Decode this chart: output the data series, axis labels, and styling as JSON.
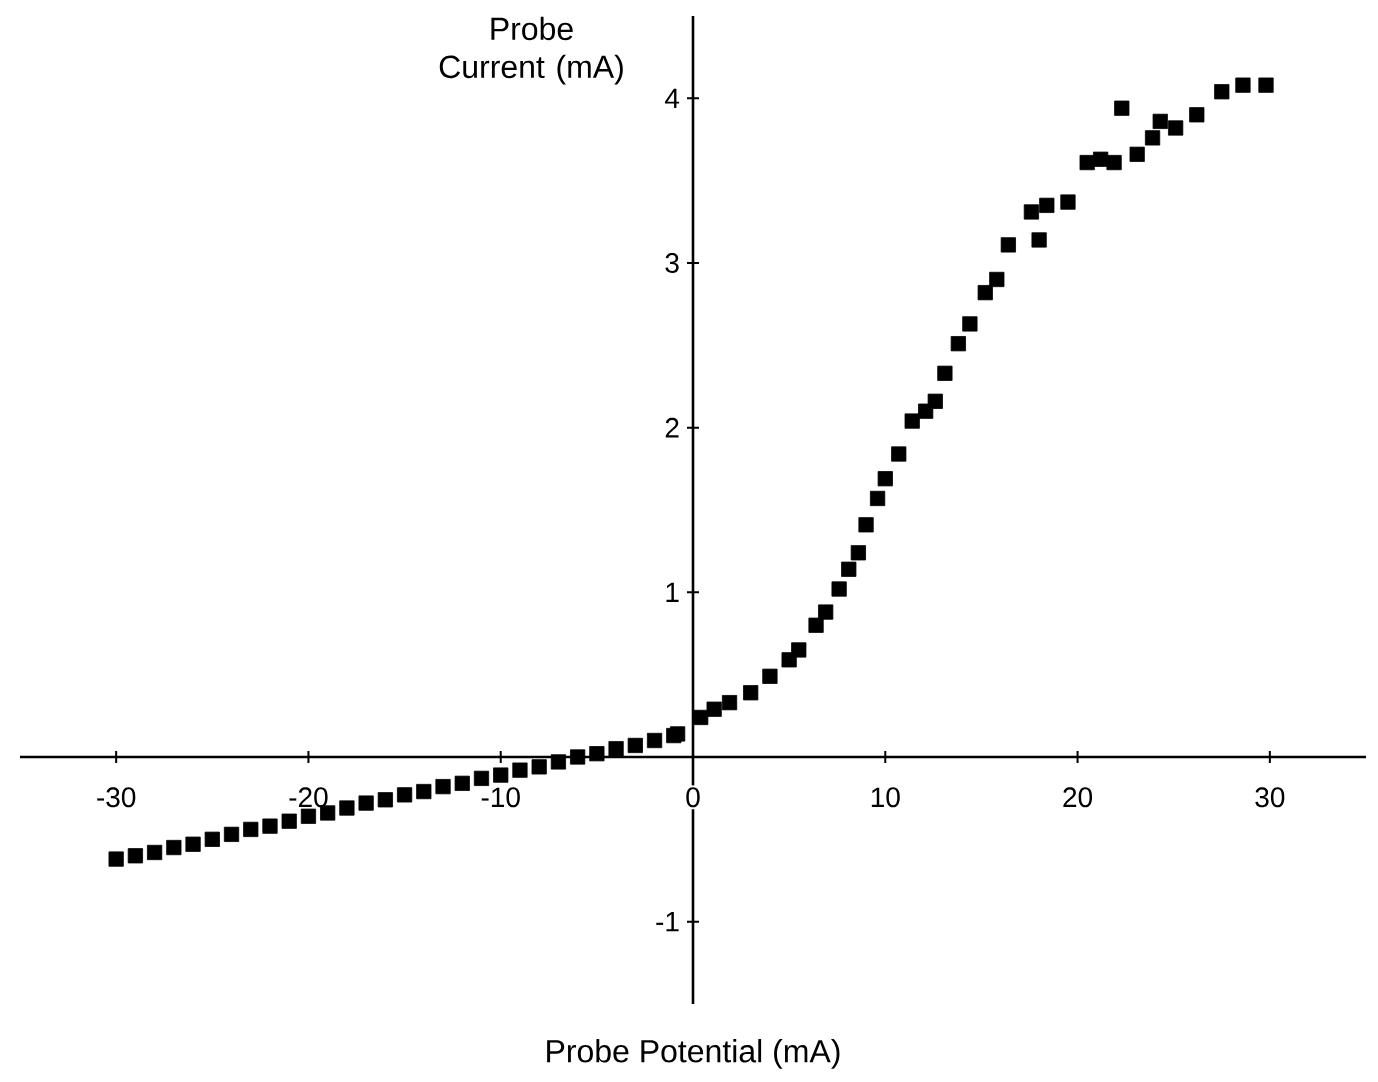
{
  "chart_data": {
    "type": "scatter",
    "xlabel": "Probe Potential (mA)",
    "ylabel": "Probe Current (mA)",
    "xlim": [
      -35,
      35
    ],
    "ylim": [
      -1.5,
      4.5
    ],
    "xticks": [
      -30,
      -20,
      -10,
      0,
      10,
      20,
      30
    ],
    "yticks": [
      -1,
      1,
      2,
      3,
      4
    ],
    "marker": "square",
    "series": [
      {
        "color": "#000000",
        "x": [
          -30,
          -29,
          -28,
          -27,
          -26,
          -25,
          -24,
          -23,
          -22,
          -21,
          -20,
          -19,
          -18,
          -17,
          -16,
          -15,
          -14,
          -13,
          -12,
          -11,
          -10,
          -9,
          -8,
          -7,
          -6,
          -5,
          -4,
          -3,
          -2,
          -1,
          -0.8,
          0.4,
          1.1,
          1.9,
          3.0,
          4.0,
          5.0,
          5.5,
          6.4,
          6.9,
          7.6,
          8.1,
          8.6,
          9.0,
          9.6,
          10.0,
          10.7,
          11.4,
          12.1,
          12.6,
          13.1,
          13.8,
          14.4,
          15.2,
          15.8,
          16.4,
          17.6,
          18.0,
          18.4,
          19.5,
          20.5,
          21.2,
          21.9,
          22.3,
          23.1,
          23.9,
          24.3,
          25.1,
          26.2,
          27.5,
          28.6,
          29.8
        ],
        "values": [
          -0.62,
          -0.6,
          -0.58,
          -0.55,
          -0.53,
          -0.5,
          -0.47,
          -0.44,
          -0.42,
          -0.39,
          -0.36,
          -0.34,
          -0.31,
          -0.28,
          -0.26,
          -0.23,
          -0.21,
          -0.18,
          -0.16,
          -0.13,
          -0.11,
          -0.08,
          -0.06,
          -0.03,
          0.0,
          0.02,
          0.05,
          0.07,
          0.1,
          0.13,
          0.14,
          0.24,
          0.29,
          0.33,
          0.39,
          0.49,
          0.59,
          0.65,
          0.8,
          0.88,
          1.02,
          1.14,
          1.24,
          1.41,
          1.57,
          1.69,
          1.84,
          2.04,
          2.1,
          2.16,
          2.33,
          2.51,
          2.63,
          2.82,
          2.9,
          3.11,
          3.31,
          3.14,
          3.35,
          3.37,
          3.61,
          3.63,
          3.61,
          3.94,
          3.66,
          3.76,
          3.86,
          3.82,
          3.9,
          4.04,
          4.08,
          4.08
        ]
      }
    ]
  }
}
